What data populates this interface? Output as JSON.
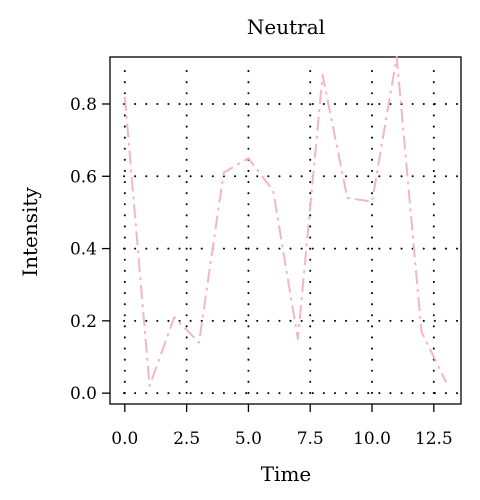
{
  "chart_data": {
    "type": "line",
    "title": "Neutral",
    "xlabel": "Time",
    "ylabel": "Intensity",
    "xlim": [
      -0.6,
      13.6
    ],
    "ylim": [
      -0.03,
      0.93
    ],
    "xticks": [
      0,
      2.5,
      5,
      7.5,
      10,
      12.5
    ],
    "xtick_labels": [
      "0.0",
      "2.5",
      "5.0",
      "7.5",
      "10.0",
      "12.5"
    ],
    "yticks": [
      0,
      0.2,
      0.4,
      0.6,
      0.8
    ],
    "ytick_labels": [
      "0.0",
      "0.2",
      "0.4",
      "0.6",
      "0.8"
    ],
    "grid": true,
    "series": [
      {
        "color": "#f4b6c2",
        "line_style": "dash-dot",
        "x": [
          0,
          1,
          2,
          3,
          4,
          5,
          6,
          7,
          8,
          9,
          10,
          11,
          12,
          13
        ],
        "y": [
          0.82,
          0.02,
          0.21,
          0.14,
          0.61,
          0.65,
          0.56,
          0.15,
          0.88,
          0.54,
          0.53,
          0.93,
          0.17,
          0.03
        ]
      }
    ]
  }
}
